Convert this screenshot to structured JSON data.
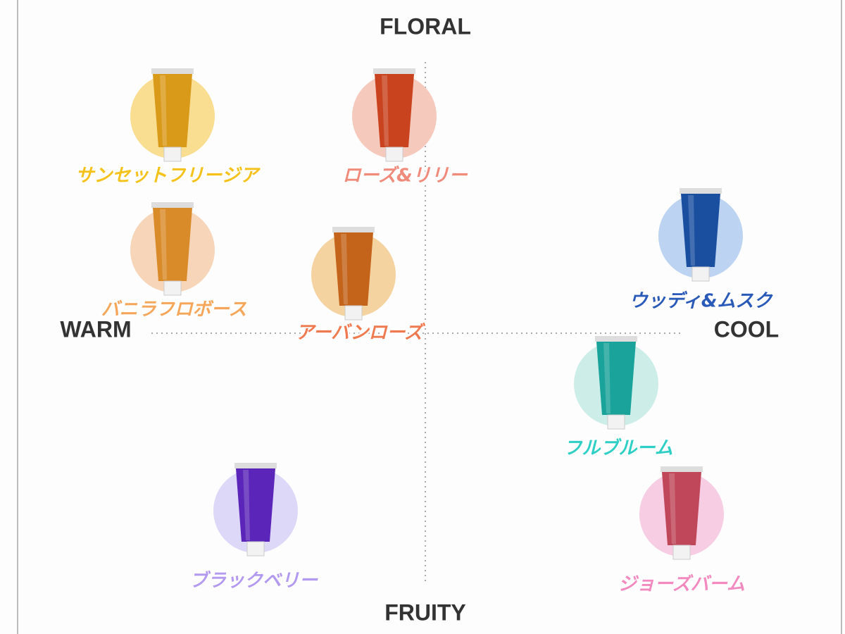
{
  "axes": {
    "top": "FLORAL",
    "bottom": "FRUITY",
    "left": "WARM",
    "right": "COOL"
  },
  "products": [
    {
      "name": "サンセットフリージア"
    },
    {
      "name": "ローズ&リリー"
    },
    {
      "name": "バニラフロボース"
    },
    {
      "name": "アーバンローズ"
    },
    {
      "name": "ウッディ&ムスク"
    },
    {
      "name": "フルブルーム"
    },
    {
      "name": "ブラックベリー"
    },
    {
      "name": "ジョーズバーム"
    }
  ]
}
